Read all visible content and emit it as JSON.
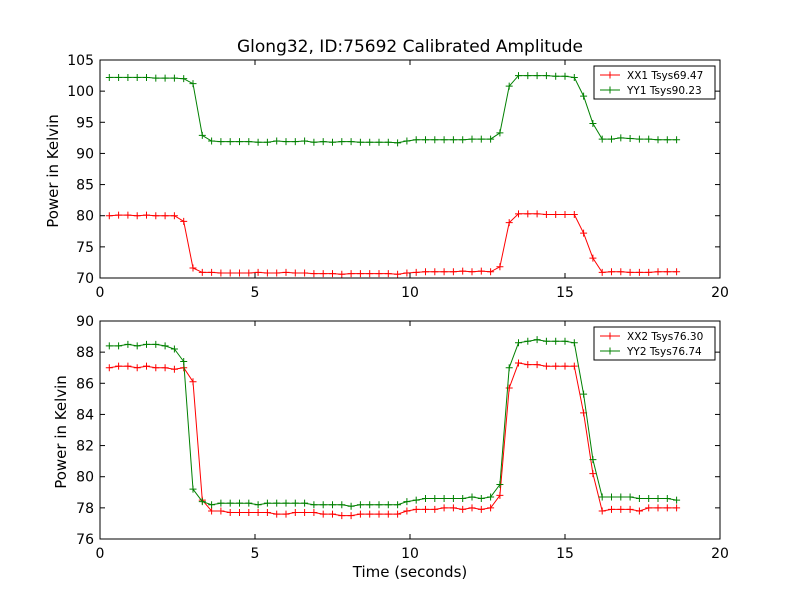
{
  "chart_data": [
    {
      "type": "line",
      "title": "Glong32, ID:75692 Calibrated Amplitude",
      "xlabel": "",
      "ylabel": "Power in Kelvin",
      "xlim": [
        0,
        20
      ],
      "ylim": [
        70,
        105
      ],
      "xticks": [
        "0",
        "5",
        "10",
        "15",
        "20"
      ],
      "yticks": [
        "70",
        "75",
        "80",
        "85",
        "90",
        "95",
        "100",
        "105"
      ],
      "grid": false,
      "legend_position": "top-right",
      "x": [
        0.3,
        0.6,
        0.9,
        1.2,
        1.5,
        1.8,
        2.1,
        2.4,
        2.7,
        3.0,
        3.3,
        3.6,
        3.9,
        4.2,
        4.5,
        4.8,
        5.1,
        5.4,
        5.7,
        6.0,
        6.3,
        6.6,
        6.9,
        7.2,
        7.5,
        7.8,
        8.1,
        8.4,
        8.7,
        9.0,
        9.3,
        9.6,
        9.9,
        10.2,
        10.5,
        10.8,
        11.1,
        11.4,
        11.7,
        12.0,
        12.3,
        12.6,
        12.9,
        13.2,
        13.5,
        13.8,
        14.1,
        14.4,
        14.7,
        15.0,
        15.3,
        15.6,
        15.9,
        16.2,
        16.5,
        16.8,
        17.1,
        17.4,
        17.7,
        18.0,
        18.3,
        18.6
      ],
      "series": [
        {
          "name": "XX1 Tsys69.47",
          "color": "#ff0000",
          "values": [
            80.0,
            80.1,
            80.1,
            80.0,
            80.1,
            80.0,
            80.0,
            80.0,
            79.1,
            71.6,
            70.9,
            70.9,
            70.8,
            70.8,
            70.8,
            70.8,
            70.9,
            70.8,
            70.8,
            70.9,
            70.8,
            70.8,
            70.7,
            70.7,
            70.7,
            70.6,
            70.7,
            70.7,
            70.7,
            70.7,
            70.7,
            70.6,
            70.8,
            70.9,
            71.0,
            71.0,
            71.0,
            71.0,
            71.1,
            71.0,
            71.1,
            71.0,
            71.8,
            78.9,
            80.3,
            80.3,
            80.3,
            80.2,
            80.2,
            80.2,
            80.2,
            77.2,
            73.2,
            70.9,
            71.0,
            71.0,
            70.9,
            70.9,
            70.9,
            71.0,
            71.0,
            71.0
          ]
        },
        {
          "name": "YY1 Tsys90.23",
          "color": "#008000",
          "values": [
            102.2,
            102.2,
            102.2,
            102.2,
            102.2,
            102.1,
            102.1,
            102.1,
            102.0,
            101.2,
            92.9,
            92.0,
            91.9,
            91.9,
            91.9,
            91.9,
            91.8,
            91.8,
            92.0,
            91.9,
            91.9,
            92.0,
            91.8,
            91.9,
            91.8,
            91.9,
            91.9,
            91.8,
            91.8,
            91.8,
            91.8,
            91.7,
            92.0,
            92.2,
            92.2,
            92.2,
            92.2,
            92.2,
            92.2,
            92.3,
            92.3,
            92.3,
            93.3,
            100.8,
            102.5,
            102.5,
            102.5,
            102.5,
            102.4,
            102.4,
            102.2,
            99.2,
            94.8,
            92.3,
            92.3,
            92.5,
            92.4,
            92.3,
            92.3,
            92.2,
            92.2,
            92.2
          ]
        }
      ]
    },
    {
      "type": "line",
      "title": "",
      "xlabel": "Time (seconds)",
      "ylabel": "Power in Kelvin",
      "xlim": [
        0,
        20
      ],
      "ylim": [
        76,
        90
      ],
      "xticks": [
        "0",
        "5",
        "10",
        "15",
        "20"
      ],
      "yticks": [
        "76",
        "78",
        "80",
        "82",
        "84",
        "86",
        "88",
        "90"
      ],
      "grid": false,
      "legend_position": "top-right",
      "x": [
        0.3,
        0.6,
        0.9,
        1.2,
        1.5,
        1.8,
        2.1,
        2.4,
        2.7,
        3.0,
        3.3,
        3.6,
        3.9,
        4.2,
        4.5,
        4.8,
        5.1,
        5.4,
        5.7,
        6.0,
        6.3,
        6.6,
        6.9,
        7.2,
        7.5,
        7.8,
        8.1,
        8.4,
        8.7,
        9.0,
        9.3,
        9.6,
        9.9,
        10.2,
        10.5,
        10.8,
        11.1,
        11.4,
        11.7,
        12.0,
        12.3,
        12.6,
        12.9,
        13.2,
        13.5,
        13.8,
        14.1,
        14.4,
        14.7,
        15.0,
        15.3,
        15.6,
        15.9,
        16.2,
        16.5,
        16.8,
        17.1,
        17.4,
        17.7,
        18.0,
        18.3,
        18.6
      ],
      "series": [
        {
          "name": "XX2 Tsys76.30",
          "color": "#ff0000",
          "values": [
            87.0,
            87.1,
            87.1,
            87.0,
            87.1,
            87.0,
            87.0,
            86.9,
            87.0,
            86.1,
            78.5,
            77.8,
            77.8,
            77.7,
            77.7,
            77.7,
            77.7,
            77.7,
            77.6,
            77.6,
            77.7,
            77.7,
            77.7,
            77.6,
            77.6,
            77.5,
            77.5,
            77.6,
            77.6,
            77.6,
            77.6,
            77.6,
            77.8,
            77.9,
            77.9,
            77.9,
            78.0,
            78.0,
            77.9,
            78.0,
            77.9,
            78.0,
            78.8,
            85.7,
            87.3,
            87.2,
            87.2,
            87.1,
            87.1,
            87.1,
            87.1,
            84.1,
            80.2,
            77.8,
            77.9,
            77.9,
            77.9,
            77.8,
            78.0,
            78.0,
            78.0,
            78.0
          ]
        },
        {
          "name": "YY2 Tsys76.74",
          "color": "#008000",
          "values": [
            88.4,
            88.4,
            88.5,
            88.4,
            88.5,
            88.5,
            88.4,
            88.2,
            87.4,
            79.2,
            78.4,
            78.2,
            78.3,
            78.3,
            78.3,
            78.3,
            78.2,
            78.3,
            78.3,
            78.3,
            78.3,
            78.3,
            78.2,
            78.2,
            78.2,
            78.2,
            78.1,
            78.2,
            78.2,
            78.2,
            78.2,
            78.2,
            78.4,
            78.5,
            78.6,
            78.6,
            78.6,
            78.6,
            78.6,
            78.7,
            78.6,
            78.7,
            79.5,
            87.0,
            88.6,
            88.7,
            88.8,
            88.7,
            88.7,
            88.7,
            88.6,
            85.3,
            81.1,
            78.7,
            78.7,
            78.7,
            78.7,
            78.6,
            78.6,
            78.6,
            78.6,
            78.5
          ]
        }
      ]
    }
  ]
}
